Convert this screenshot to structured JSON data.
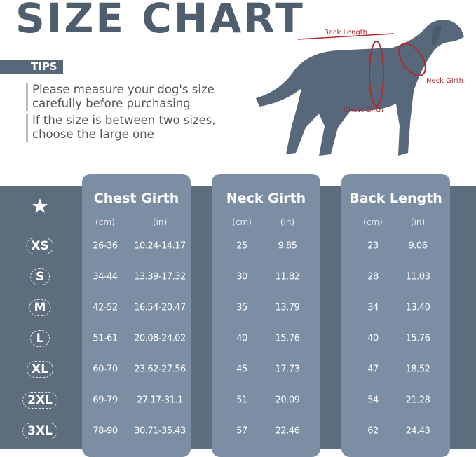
{
  "header": {
    "title": "SIZE CHART"
  },
  "tips": {
    "label": "TIPS",
    "items": [
      "Please measure your dog's size carefully before purchasing",
      "If the size is between two sizes, choose the large one"
    ]
  },
  "diagram": {
    "labels": [
      "Back Length",
      "Neck Girth",
      "Chest Girth"
    ]
  },
  "table": {
    "columns": [
      {
        "title": "Chest Girth",
        "units": [
          "(cm)",
          "(in)"
        ]
      },
      {
        "title": "Neck Girth",
        "units": [
          "(cm)",
          "(in)"
        ]
      },
      {
        "title": "Back Length",
        "units": [
          "(cm)",
          "(in)"
        ]
      }
    ],
    "rows": [
      {
        "size": "XS",
        "cells": [
          "26-36",
          "10.24-14.17",
          "25",
          "9.85",
          "23",
          "9.06"
        ]
      },
      {
        "size": "S",
        "cells": [
          "34-44",
          "13.39-17.32",
          "30",
          "11.82",
          "28",
          "11.03"
        ]
      },
      {
        "size": "M",
        "cells": [
          "42-52",
          "16.54-20.47",
          "35",
          "13.79",
          "34",
          "13.40"
        ]
      },
      {
        "size": "L",
        "cells": [
          "51-61",
          "20.08-24.02",
          "40",
          "15.76",
          "40",
          "15.76"
        ]
      },
      {
        "size": "XL",
        "cells": [
          "60-70",
          "23.62-27.56",
          "45",
          "17.73",
          "47",
          "18.52"
        ]
      },
      {
        "size": "2XL",
        "cells": [
          "69-79",
          "27.17-31.1",
          "51",
          "20.09",
          "54",
          "21.28"
        ]
      },
      {
        "size": "3XL",
        "cells": [
          "78-90",
          "30.71-35.43",
          "57",
          "22.46",
          "62",
          "24.43"
        ]
      }
    ]
  }
}
